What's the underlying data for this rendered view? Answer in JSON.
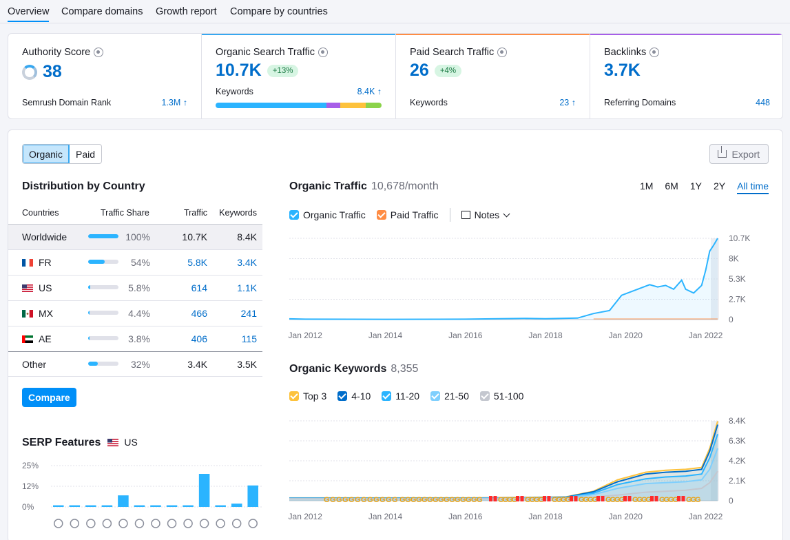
{
  "tabs": [
    "Overview",
    "Compare domains",
    "Growth report",
    "Compare by countries"
  ],
  "metrics": {
    "authority": {
      "title": "Authority Score",
      "value": "38",
      "sub_label": "Semrush Domain Rank",
      "sub_value": "1.3M ↑"
    },
    "organic": {
      "title": "Organic Search Traffic",
      "value": "10.7K",
      "badge": "+13%",
      "sub_label": "Keywords",
      "sub_value": "8.4K ↑",
      "accent": "#37a7f0"
    },
    "paid": {
      "title": "Paid Search Traffic",
      "value": "26",
      "badge": "+4%",
      "sub_label": "Keywords",
      "sub_value": "23 ↑",
      "accent": "#ff8c43"
    },
    "backlinks": {
      "title": "Backlinks",
      "value": "3.7K",
      "sub_label": "Referring Domains",
      "sub_value": "448",
      "accent": "#a75800"
    }
  },
  "mode_toggle": {
    "organic": "Organic",
    "paid": "Paid"
  },
  "export_label": "Export",
  "distribution": {
    "title": "Distribution by Country",
    "headers": {
      "country": "Countries",
      "share": "Traffic Share",
      "traffic": "Traffic",
      "keywords": "Keywords"
    },
    "rows": [
      {
        "country": "Worldwide",
        "share": "100%",
        "share_value": 100,
        "traffic": "10.7K",
        "keywords": "8.4K",
        "flag": "none"
      },
      {
        "country": "FR",
        "share": "54%",
        "share_value": 54,
        "traffic": "5.8K",
        "keywords": "3.4K",
        "flag": "fr"
      },
      {
        "country": "US",
        "share": "5.8%",
        "share_value": 5.8,
        "traffic": "614",
        "keywords": "1.1K",
        "flag": "us"
      },
      {
        "country": "MX",
        "share": "4.4%",
        "share_value": 4.4,
        "traffic": "466",
        "keywords": "241",
        "flag": "mx"
      },
      {
        "country": "AE",
        "share": "3.8%",
        "share_value": 3.8,
        "traffic": "406",
        "keywords": "115",
        "flag": "ae"
      },
      {
        "country": "Other",
        "share": "32%",
        "share_value": 32,
        "traffic": "3.4K",
        "keywords": "3.5K",
        "flag": "none"
      }
    ],
    "compare_label": "Compare"
  },
  "serp": {
    "title": "SERP Features",
    "country": "US"
  },
  "organic_traffic": {
    "title": "Organic Traffic",
    "value": "10,678/month"
  },
  "ranges": [
    "1M",
    "6M",
    "1Y",
    "2Y",
    "All time"
  ],
  "traffic_legend": {
    "organic": "Organic Traffic",
    "paid": "Paid Traffic",
    "notes": "Notes"
  },
  "organic_keywords": {
    "title": "Organic Keywords",
    "value": "8,355"
  },
  "keyword_legend": [
    "Top 3",
    "4-10",
    "11-20",
    "21-50",
    "51-100"
  ],
  "colors": {
    "accent": "#008ff8",
    "link": "#006dca",
    "top3": "#fdc23c",
    "k4_10": "#006dca",
    "k11_20": "#2bb4ff",
    "k21_50": "#7fcffd",
    "k51_100": "#c4c7cf"
  },
  "chart_data": [
    {
      "type": "line",
      "title": "Organic Traffic",
      "x_ticks": [
        "Jan 2012",
        "Jan 2014",
        "Jan 2016",
        "Jan 2018",
        "Jan 2020",
        "Jan 2022"
      ],
      "y_ticks": [
        "0",
        "2.7K",
        "5.3K",
        "8K",
        "10.7K"
      ],
      "ylim": [
        0,
        10700
      ],
      "xlim": [
        2012,
        2022.3
      ],
      "series": [
        {
          "name": "Organic Traffic",
          "color": "#2bb4ff",
          "x": [
            2011.6,
            2012,
            2014,
            2016,
            2017.5,
            2018,
            2018.8,
            2019.2,
            2019.6,
            2019.9,
            2020.3,
            2020.6,
            2020.8,
            2021.0,
            2021.2,
            2021.4,
            2021.5,
            2021.7,
            2021.9,
            2022.0,
            2022.1,
            2022.2,
            2022.3
          ],
          "y": [
            100,
            50,
            40,
            50,
            150,
            120,
            200,
            800,
            1200,
            3200,
            4000,
            4600,
            4300,
            4500,
            4000,
            5200,
            4000,
            3500,
            4500,
            6500,
            9000,
            9800,
            10700
          ]
        },
        {
          "name": "Paid Traffic",
          "color": "#ff8c43",
          "x": [
            2011.6,
            2022.3
          ],
          "y": [
            0,
            26
          ]
        }
      ]
    },
    {
      "type": "area",
      "title": "Organic Keywords",
      "x_ticks": [
        "Jan 2012",
        "Jan 2014",
        "Jan 2016",
        "Jan 2018",
        "Jan 2020",
        "Jan 2022"
      ],
      "y_ticks": [
        "0",
        "2.1K",
        "4.2K",
        "6.3K",
        "8.4K"
      ],
      "ylim": [
        0,
        8400
      ],
      "xlim": [
        2012,
        2022.3
      ],
      "x": [
        2011.6,
        2014,
        2016,
        2017.5,
        2018.5,
        2019.2,
        2019.8,
        2020.5,
        2021.0,
        2021.5,
        2021.9,
        2022.1,
        2022.3
      ],
      "series": [
        {
          "name": "Top 3",
          "values": [
            300,
            300,
            300,
            350,
            400,
            1000,
            2200,
            3000,
            3200,
            3300,
            3500,
            5500,
            8355
          ]
        },
        {
          "name": "4-10",
          "values": [
            280,
            280,
            280,
            320,
            380,
            950,
            2000,
            2800,
            3000,
            3100,
            3300,
            5200,
            8000
          ]
        },
        {
          "name": "11-20",
          "values": [
            260,
            260,
            260,
            300,
            350,
            800,
            1700,
            2300,
            2500,
            2600,
            2800,
            4500,
            7000
          ]
        },
        {
          "name": "21-50",
          "values": [
            240,
            240,
            240,
            280,
            320,
            650,
            1300,
            1800,
            1900,
            2000,
            2200,
            3300,
            5500
          ]
        },
        {
          "name": "51-100",
          "values": [
            200,
            200,
            200,
            220,
            250,
            400,
            600,
            900,
            1000,
            1100,
            1300,
            1900,
            3100
          ]
        }
      ]
    },
    {
      "type": "bar",
      "title": "SERP Features",
      "y_ticks": [
        "0%",
        "12%",
        "25%"
      ],
      "ylim": [
        0,
        25
      ],
      "categories": [
        "knowledge-panel",
        "local-pack",
        "featured-snippet",
        "image-pack",
        "sitelinks",
        "reviews",
        "video",
        "video-carousel",
        "top-stories",
        "images",
        "carousel",
        "faq",
        "people-also-ask"
      ],
      "values": [
        1,
        1,
        1,
        1,
        7,
        1,
        1,
        1,
        1,
        20,
        1,
        2,
        13
      ]
    }
  ]
}
